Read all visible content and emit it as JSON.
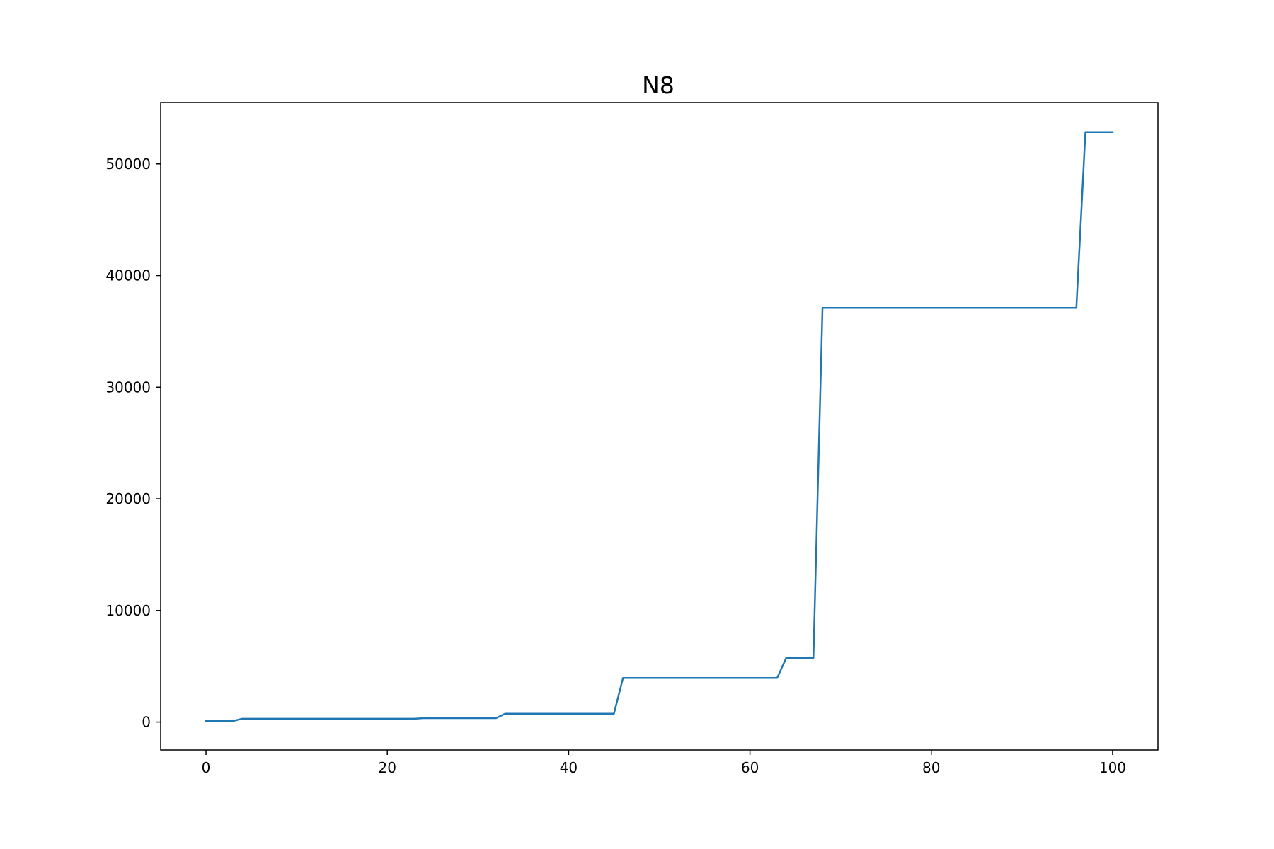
{
  "chart_data": {
    "type": "line",
    "title": "N8",
    "xlabel": "",
    "ylabel": "",
    "xlim": [
      -5,
      105
    ],
    "ylim": [
      -2500,
      55500
    ],
    "xticks": [
      0,
      20,
      40,
      60,
      80,
      100
    ],
    "yticks": [
      0,
      10000,
      20000,
      30000,
      40000,
      50000
    ],
    "grid": false,
    "legend": "none",
    "series": [
      {
        "color": "#1f77b4",
        "x": [
          0,
          3,
          4,
          23,
          24,
          32,
          33,
          45,
          46,
          63,
          64,
          67,
          68,
          96,
          97,
          100
        ],
        "y": [
          100,
          100,
          300,
          300,
          350,
          350,
          750,
          750,
          3950,
          3950,
          5750,
          5750,
          37100,
          37100,
          52850,
          52850
        ]
      }
    ]
  }
}
